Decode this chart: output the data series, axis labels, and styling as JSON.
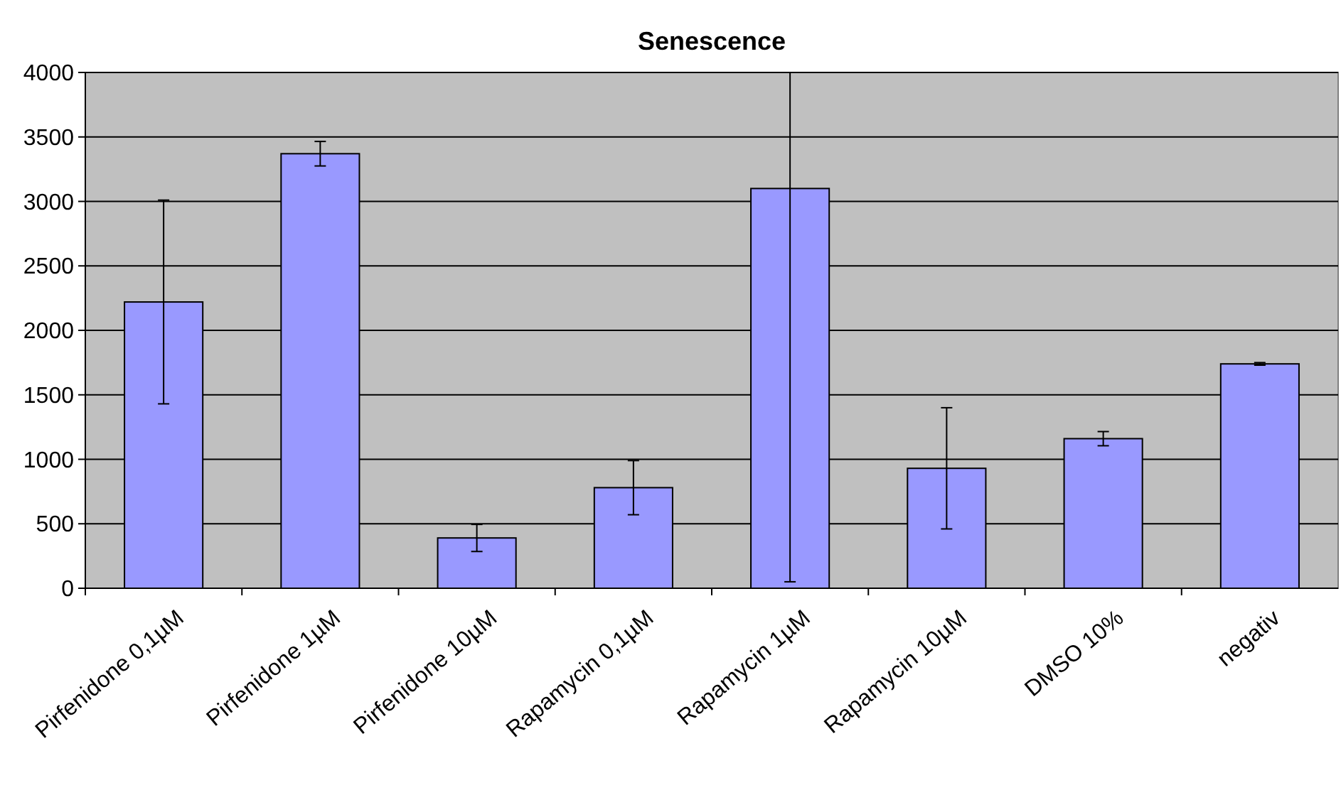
{
  "chart_data": {
    "type": "bar",
    "title": "Senescence",
    "categories": [
      "Pirfenidone 0,1µM",
      "Pirfenidone 1µM",
      "Pirfenidone 10µM",
      "Rapamycin 0,1µM",
      "Rapamycin 1µM",
      "Rapamycin 10µM",
      "DMSO 10%",
      "negativ"
    ],
    "values": [
      2220,
      3370,
      390,
      780,
      3100,
      930,
      1160,
      1740
    ],
    "errors": [
      790,
      95,
      105,
      210,
      [
        50,
        4000
      ],
      470,
      55,
      10
    ],
    "color": "#9999ff",
    "ylim": [
      0,
      4000
    ],
    "yticks": [
      0,
      500,
      1000,
      1500,
      2000,
      2500,
      3000,
      3500,
      4000
    ],
    "grid": "y"
  }
}
